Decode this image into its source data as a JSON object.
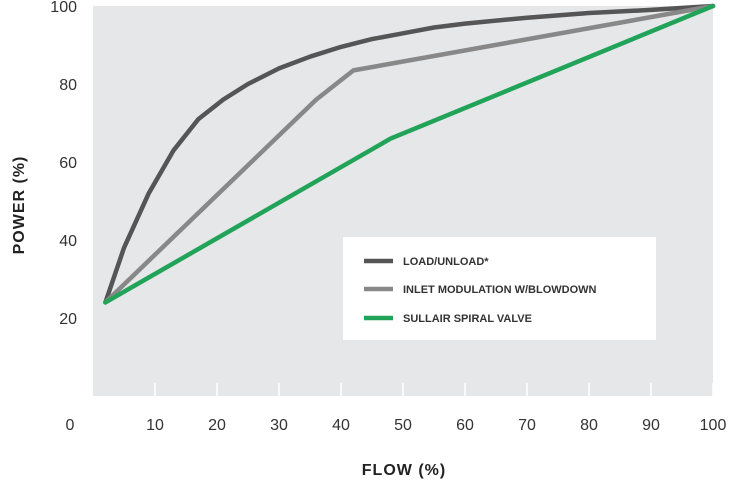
{
  "chart_data": {
    "type": "line",
    "title": "",
    "xlabel": "FLOW (%)",
    "ylabel": "POWER (%)",
    "xlim": [
      0,
      100
    ],
    "ylim": [
      0,
      100
    ],
    "x_ticks": [
      "0",
      "10",
      "20",
      "30",
      "40",
      "50",
      "60",
      "70",
      "80",
      "90",
      "100"
    ],
    "y_ticks": [
      "20",
      "40",
      "60",
      "80",
      "100"
    ],
    "grid": false,
    "legend_position": "center-right",
    "series": [
      {
        "name": "LOAD/UNLOAD*",
        "color": "#555555",
        "points": [
          [
            2,
            24
          ],
          [
            5,
            38
          ],
          [
            9,
            52
          ],
          [
            13,
            63
          ],
          [
            17,
            71
          ],
          [
            21,
            76
          ],
          [
            25,
            80
          ],
          [
            30,
            84
          ],
          [
            35,
            87
          ],
          [
            40,
            89.5
          ],
          [
            45,
            91.5
          ],
          [
            50,
            93
          ],
          [
            55,
            94.5
          ],
          [
            60,
            95.5
          ],
          [
            70,
            97
          ],
          [
            80,
            98.2
          ],
          [
            90,
            99
          ],
          [
            100,
            100
          ]
        ]
      },
      {
        "name": "INLET MODULATION W/BLOWDOWN",
        "color": "#888888",
        "points": [
          [
            2,
            24
          ],
          [
            36,
            76
          ],
          [
            42,
            83.5
          ],
          [
            100,
            100
          ]
        ]
      },
      {
        "name": "SULLAIR SPIRAL VALVE",
        "color": "#22a35a",
        "points": [
          [
            2,
            24
          ],
          [
            48,
            66
          ],
          [
            100,
            100
          ]
        ]
      }
    ]
  }
}
